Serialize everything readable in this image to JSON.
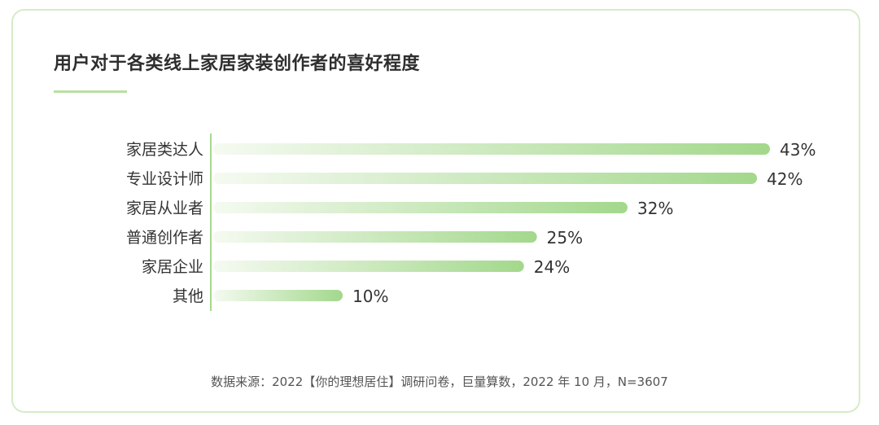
{
  "chart_data": {
    "type": "bar",
    "orientation": "horizontal",
    "title": "用户对于各类线上家居家装创作者的喜好程度",
    "categories": [
      "家居类达人",
      "专业设计师",
      "家居从业者",
      "普通创作者",
      "家居企业",
      "其他"
    ],
    "values": [
      43,
      42,
      32,
      25,
      24,
      10
    ],
    "value_labels": [
      "43%",
      "42%",
      "32%",
      "25%",
      "24%",
      "10%"
    ],
    "unit": "%",
    "xlim": [
      0,
      43
    ],
    "grid": false,
    "legend": "none",
    "colors": {
      "bar_start": "#f5faf1",
      "bar_end": "#a3d88c",
      "axis": "#a6d98f"
    }
  },
  "source": "数据来源：2022【你的理想居住】调研问卷，巨量算数，2022 年 10 月，N=3607"
}
